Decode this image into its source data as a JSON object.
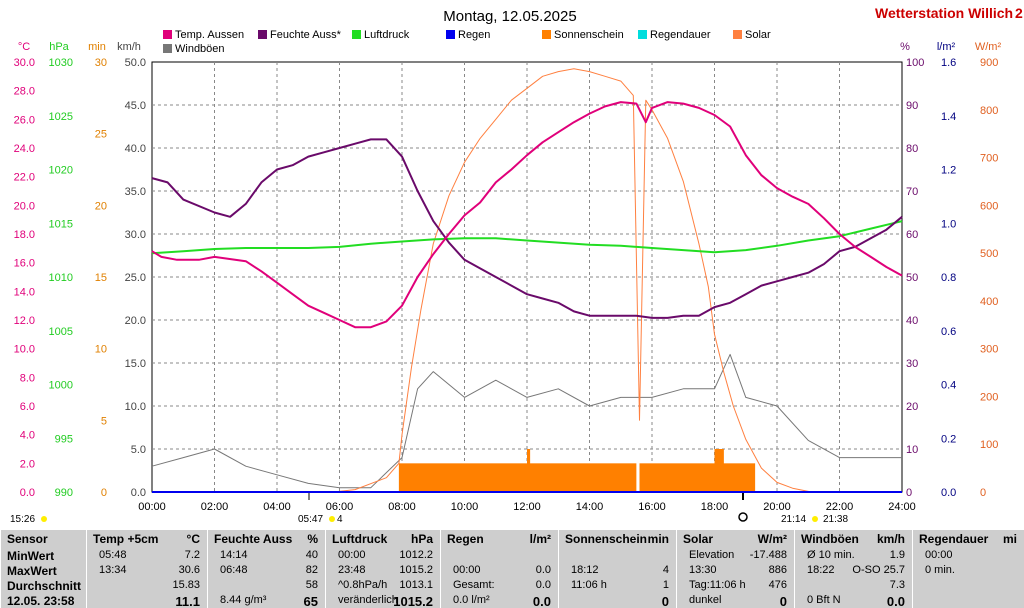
{
  "header": {
    "title": "Montag, 12.05.2025",
    "station": "Wetterstation Willich",
    "station_suffix": "2"
  },
  "legend": [
    {
      "label": "Temp. Aussen",
      "color": "#e0007a"
    },
    {
      "label": "Feuchte Auss*",
      "color": "#6a0a6a"
    },
    {
      "label": "Luftdruck",
      "color": "#22dd22"
    },
    {
      "label": "Regen",
      "color": "#0000ee"
    },
    {
      "label": "Sonnenschein",
      "color": "#ff8000"
    },
    {
      "label": "Regendauer",
      "color": "#00dddd"
    },
    {
      "label": "Solar",
      "color": "#ff8040"
    },
    {
      "label": "Windböen",
      "color": "#777777"
    }
  ],
  "axes": {
    "temp": {
      "unit": "°C",
      "color": "#e0007a",
      "ticks": [
        "30.0",
        "28.0",
        "26.0",
        "24.0",
        "22.0",
        "20.0",
        "18.0",
        "16.0",
        "14.0",
        "12.0",
        "10.0",
        "8.0",
        "6.0",
        "4.0",
        "2.0",
        "0.0"
      ]
    },
    "pressure": {
      "unit": "hPa",
      "color": "#22cc22",
      "ticks": [
        "1030",
        "1025",
        "1020",
        "1015",
        "1010",
        "1005",
        "1000",
        "995",
        "990"
      ]
    },
    "minutes": {
      "unit": "min",
      "color": "#e08000",
      "ticks": [
        "30",
        "25",
        "20",
        "15",
        "10",
        "5",
        "0"
      ]
    },
    "wind": {
      "unit": "km/h",
      "color": "#444444",
      "ticks": [
        "50.0",
        "45.0",
        "40.0",
        "35.0",
        "30.0",
        "25.0",
        "20.0",
        "15.0",
        "10.0",
        "5.0",
        "0.0"
      ]
    },
    "humidity": {
      "unit": "%",
      "color": "#6a0a6a",
      "ticks": [
        "100",
        "90",
        "80",
        "70",
        "60",
        "50",
        "40",
        "30",
        "20",
        "10",
        "0"
      ]
    },
    "rain": {
      "unit": "l/m²",
      "color": "#000080",
      "ticks": [
        "1.6",
        "1.4",
        "1.2",
        "1.0",
        "0.8",
        "0.6",
        "0.4",
        "0.2",
        "0.0"
      ]
    },
    "solar": {
      "unit": "W/m²",
      "color": "#e06020",
      "ticks": [
        "900",
        "800",
        "700",
        "600",
        "500",
        "400",
        "300",
        "200",
        "100",
        "0"
      ]
    },
    "x_ticks": [
      "00:00",
      "02:00",
      "04:00",
      "06:00",
      "08:00",
      "10:00",
      "12:00",
      "14:00",
      "16:00",
      "18:00",
      "20:00",
      "22:00",
      "24:00"
    ]
  },
  "sun_events": {
    "start_time": "15:26",
    "sunrise": "05:47",
    "sunrise_count": "4",
    "sunset": "21:14",
    "sunset2": "21:38"
  },
  "chart_data": {
    "type": "line",
    "title": "Montag, 12.05.2025",
    "x_unit": "hours",
    "x_range": [
      0,
      24
    ],
    "series": [
      {
        "name": "Temp. Aussen",
        "axis": "°C",
        "range": [
          0,
          30
        ],
        "points": [
          [
            0,
            16.8
          ],
          [
            0.3,
            16.4
          ],
          [
            0.8,
            16.2
          ],
          [
            1.5,
            16.2
          ],
          [
            2,
            16.4
          ],
          [
            3,
            16.1
          ],
          [
            3.5,
            15.4
          ],
          [
            4,
            14.6
          ],
          [
            4.5,
            13.8
          ],
          [
            5,
            13.0
          ],
          [
            5.5,
            12.5
          ],
          [
            6,
            12.0
          ],
          [
            6.5,
            11.5
          ],
          [
            7,
            11.5
          ],
          [
            7.5,
            11.9
          ],
          [
            8,
            13.0
          ],
          [
            8.5,
            15.0
          ],
          [
            9,
            16.6
          ],
          [
            9.5,
            18.0
          ],
          [
            10,
            19.3
          ],
          [
            10.5,
            20.2
          ],
          [
            11,
            21.6
          ],
          [
            11.5,
            22.5
          ],
          [
            12,
            23.5
          ],
          [
            12.5,
            24.4
          ],
          [
            13,
            25.1
          ],
          [
            13.5,
            25.8
          ],
          [
            14,
            26.4
          ],
          [
            14.5,
            26.9
          ],
          [
            15,
            27.2
          ],
          [
            15.5,
            27.1
          ],
          [
            15.8,
            25.8
          ],
          [
            16,
            26.8
          ],
          [
            16.5,
            27.2
          ],
          [
            17,
            27.1
          ],
          [
            17.5,
            26.8
          ],
          [
            18,
            26.3
          ],
          [
            18.5,
            25.5
          ],
          [
            19,
            23.5
          ],
          [
            19.5,
            22.1
          ],
          [
            20,
            21.2
          ],
          [
            20.5,
            20.6
          ],
          [
            21,
            20.1
          ],
          [
            21.5,
            19.1
          ],
          [
            22,
            18.0
          ],
          [
            22.5,
            17.1
          ],
          [
            23,
            16.4
          ],
          [
            23.5,
            15.7
          ],
          [
            24,
            15.1
          ]
        ]
      },
      {
        "name": "Feuchte Auss*",
        "axis": "%",
        "range": [
          0,
          100
        ],
        "points": [
          [
            0,
            73
          ],
          [
            0.5,
            72
          ],
          [
            1,
            68
          ],
          [
            2,
            65
          ],
          [
            2.5,
            64
          ],
          [
            3,
            67
          ],
          [
            3.5,
            72
          ],
          [
            4,
            75
          ],
          [
            4.5,
            76
          ],
          [
            5,
            78
          ],
          [
            5.5,
            79
          ],
          [
            6,
            80
          ],
          [
            6.5,
            81
          ],
          [
            7,
            82
          ],
          [
            7.5,
            82
          ],
          [
            8,
            78
          ],
          [
            8.5,
            70
          ],
          [
            9,
            63
          ],
          [
            9.5,
            58
          ],
          [
            10,
            54
          ],
          [
            10.5,
            52
          ],
          [
            11,
            50
          ],
          [
            11.5,
            48
          ],
          [
            12,
            46
          ],
          [
            12.5,
            45
          ],
          [
            13,
            44
          ],
          [
            13.5,
            42
          ],
          [
            14,
            41
          ],
          [
            14.5,
            41
          ],
          [
            15,
            41
          ],
          [
            15.5,
            41
          ],
          [
            16,
            40.5
          ],
          [
            16.5,
            40.5
          ],
          [
            17,
            41
          ],
          [
            17.5,
            41
          ],
          [
            18,
            43
          ],
          [
            18.5,
            44
          ],
          [
            19,
            46
          ],
          [
            19.5,
            48
          ],
          [
            20,
            49
          ],
          [
            20.5,
            50
          ],
          [
            21,
            51
          ],
          [
            21.5,
            53
          ],
          [
            22,
            56
          ],
          [
            22.5,
            57
          ],
          [
            23,
            59
          ],
          [
            23.5,
            61
          ],
          [
            24,
            64
          ]
        ]
      },
      {
        "name": "Luftdruck",
        "axis": "hPa",
        "range": [
          990,
          1030
        ],
        "points": [
          [
            0,
            1012.2
          ],
          [
            1,
            1012.4
          ],
          [
            2,
            1012.6
          ],
          [
            3,
            1012.7
          ],
          [
            4,
            1012.7
          ],
          [
            5,
            1012.7
          ],
          [
            6,
            1012.8
          ],
          [
            7,
            1013.1
          ],
          [
            8,
            1013.3
          ],
          [
            9,
            1013.5
          ],
          [
            10,
            1013.6
          ],
          [
            11,
            1013.6
          ],
          [
            12,
            1013.4
          ],
          [
            13,
            1013.2
          ],
          [
            14,
            1013.0
          ],
          [
            15,
            1012.9
          ],
          [
            16,
            1012.7
          ],
          [
            17,
            1012.5
          ],
          [
            18,
            1012.3
          ],
          [
            19,
            1012.5
          ],
          [
            20,
            1012.9
          ],
          [
            21,
            1013.4
          ],
          [
            22,
            1013.8
          ],
          [
            23,
            1014.5
          ],
          [
            24,
            1015.2
          ]
        ]
      },
      {
        "name": "Regen",
        "axis": "l/m²",
        "range": [
          0,
          1.6
        ],
        "points": [
          [
            0,
            0
          ],
          [
            24,
            0
          ]
        ]
      },
      {
        "name": "Solar",
        "axis": "W/m²",
        "range": [
          0,
          900
        ],
        "points": [
          [
            5.8,
            0
          ],
          [
            6.5,
            5
          ],
          [
            7.5,
            30
          ],
          [
            7.9,
            60
          ],
          [
            8,
            120
          ],
          [
            8.3,
            260
          ],
          [
            8.6,
            380
          ],
          [
            9,
            520
          ],
          [
            9.5,
            620
          ],
          [
            10,
            690
          ],
          [
            10.5,
            740
          ],
          [
            11,
            780
          ],
          [
            11.5,
            820
          ],
          [
            12,
            845
          ],
          [
            12.5,
            870
          ],
          [
            13,
            880
          ],
          [
            13.5,
            886
          ],
          [
            14,
            880
          ],
          [
            14.5,
            870
          ],
          [
            15,
            860
          ],
          [
            15.4,
            830
          ],
          [
            15.6,
            150
          ],
          [
            15.8,
            820
          ],
          [
            16,
            800
          ],
          [
            16.5,
            740
          ],
          [
            17,
            650
          ],
          [
            17.5,
            520
          ],
          [
            17.8,
            430
          ],
          [
            18,
            330
          ],
          [
            18.3,
            250
          ],
          [
            18.6,
            180
          ],
          [
            19,
            110
          ],
          [
            19.5,
            50
          ],
          [
            20,
            20
          ],
          [
            20.5,
            8
          ],
          [
            21.1,
            0
          ]
        ]
      },
      {
        "name": "Windböen",
        "axis": "km/h",
        "range": [
          0,
          50
        ],
        "points": [
          [
            0,
            3
          ],
          [
            1,
            4
          ],
          [
            2,
            5
          ],
          [
            3,
            3
          ],
          [
            4,
            2
          ],
          [
            5,
            1
          ],
          [
            6,
            0.5
          ],
          [
            7,
            0.5
          ],
          [
            8,
            4
          ],
          [
            8.5,
            12
          ],
          [
            9,
            14
          ],
          [
            10,
            11
          ],
          [
            11,
            13
          ],
          [
            12,
            11
          ],
          [
            13,
            12
          ],
          [
            14,
            10
          ],
          [
            15,
            11
          ],
          [
            16,
            11
          ],
          [
            17,
            12
          ],
          [
            18,
            12
          ],
          [
            18.5,
            16
          ],
          [
            19,
            11
          ],
          [
            20,
            10
          ],
          [
            21,
            6
          ],
          [
            22,
            4
          ],
          [
            23,
            4
          ],
          [
            24,
            4
          ]
        ]
      }
    ],
    "bars": {
      "name": "Sonnenschein",
      "axis": "min",
      "range": [
        0,
        30
      ],
      "segments": [
        [
          7.9,
          15.5,
          2
        ],
        [
          12,
          12.1,
          3
        ],
        [
          15.6,
          19.3,
          2
        ],
        [
          18,
          18.3,
          3
        ]
      ]
    }
  },
  "summary": {
    "sensor": {
      "title": "Sensor",
      "rows": [
        "MinWert",
        "MaxWert",
        "Durchschnitt",
        "12.05. 23:58"
      ]
    },
    "temp": {
      "title": "Temp +5cm",
      "unit": "°C",
      "rows": [
        [
          "05:48",
          "7.2"
        ],
        [
          "13:34",
          "30.6"
        ],
        [
          "",
          "15.83"
        ],
        [
          "",
          "11.1"
        ]
      ]
    },
    "feuchte": {
      "title": "Feuchte Auss",
      "unit": "%",
      "rows": [
        [
          "14:14",
          "40"
        ],
        [
          "06:48",
          "82"
        ],
        [
          "",
          "58"
        ],
        [
          "8.44 g/m³",
          "65"
        ]
      ]
    },
    "luftdruck": {
      "title": "Luftdruck",
      "unit": "hPa",
      "rows": [
        [
          "00:00",
          "1012.2"
        ],
        [
          "23:48",
          "1015.2"
        ],
        [
          "^0.8hPa/h",
          "1013.1"
        ],
        [
          "veränderlich",
          "1015.2"
        ]
      ]
    },
    "regen": {
      "title": "Regen",
      "unit": "l/m²",
      "rows": [
        [
          "",
          ""
        ],
        [
          "00:00",
          "0.0"
        ],
        [
          "Gesamt:",
          "0.0"
        ],
        [
          "0.0 l/m²",
          "0.0"
        ]
      ]
    },
    "sonnenschein": {
      "title": "Sonnenschein",
      "unit": "min",
      "rows": [
        [
          "",
          ""
        ],
        [
          "18:12",
          "4"
        ],
        [
          "11:06 h",
          "1"
        ],
        [
          "",
          "0"
        ]
      ]
    },
    "solar": {
      "title": "Solar",
      "unit": "W/m²",
      "rows": [
        [
          "Elevation",
          "-17.488"
        ],
        [
          "13:30",
          "886"
        ],
        [
          "Tag:11:06 h",
          "476"
        ],
        [
          "dunkel",
          "0"
        ]
      ]
    },
    "windboeen": {
      "title": "Windböen",
      "unit": "km/h",
      "rows": [
        [
          "Ø 10 min.",
          "1.9"
        ],
        [
          "18:22",
          "O-SO 25.7"
        ],
        [
          "",
          "7.3"
        ],
        [
          "0 Bft N",
          "0.0"
        ]
      ]
    },
    "regendauer": {
      "title": "Regendauer",
      "unit": "mi",
      "rows": [
        [
          "00:00",
          ""
        ],
        [
          "0 min.",
          ""
        ],
        [
          "",
          ""
        ],
        [
          "",
          ""
        ]
      ]
    }
  }
}
